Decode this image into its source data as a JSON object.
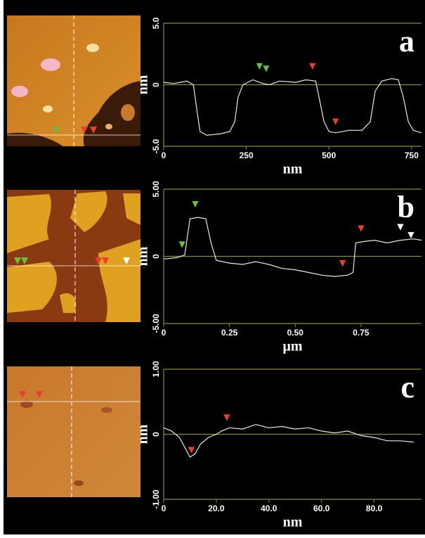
{
  "chart_data": [
    {
      "type": "line",
      "panel_label": "a",
      "x_label": "nm",
      "y_label": "nm",
      "x": [
        0,
        30,
        70,
        90,
        100,
        110,
        130,
        170,
        200,
        215,
        225,
        240,
        270,
        300,
        320,
        350,
        400,
        430,
        460,
        470,
        485,
        500,
        520,
        560,
        600,
        625,
        640,
        660,
        690,
        710,
        725,
        740,
        755,
        780
      ],
      "values": [
        0.2,
        0.1,
        0.3,
        0,
        -2,
        -3.8,
        -4.1,
        -4.0,
        -3.8,
        -3,
        -1,
        0,
        0.4,
        0.1,
        0,
        0.3,
        0.2,
        0.4,
        0.3,
        -1,
        -3,
        -3.8,
        -3.9,
        -3.7,
        -3.7,
        -3,
        -0.5,
        0.3,
        0.5,
        0.4,
        -1,
        -3,
        -3.7,
        -3.9
      ],
      "color": "#e8e8e8",
      "cursors": [
        {
          "x": 290,
          "y": 1.2,
          "color": "#6cbf3a"
        },
        {
          "x": 310,
          "y": 1.0,
          "color": "#6cbf3a"
        },
        {
          "x": 450,
          "y": 1.2,
          "color": "#e8402a"
        },
        {
          "x": 520,
          "y": -3.3,
          "color": "#e8402a"
        }
      ],
      "xlim": [
        0,
        780
      ],
      "ylim": [
        -5,
        5
      ],
      "xticks": [
        0,
        250,
        500,
        750
      ],
      "yticks": [
        {
          "value": -5,
          "label": "-5.0"
        },
        0,
        {
          "value": 5,
          "label": "5.0"
        }
      ]
    },
    {
      "type": "line",
      "panel_label": "b",
      "x_label": "μm",
      "y_label": "nm",
      "x": [
        0,
        0.05,
        0.08,
        0.1,
        0.13,
        0.16,
        0.18,
        0.2,
        0.25,
        0.3,
        0.35,
        0.4,
        0.45,
        0.5,
        0.55,
        0.6,
        0.65,
        0.7,
        0.72,
        0.73,
        0.76,
        0.8,
        0.85,
        0.9,
        0.95,
        0.98
      ],
      "values": [
        -0.2,
        -0.1,
        0.1,
        2.8,
        2.9,
        2.8,
        1.0,
        -0.3,
        -0.5,
        -0.6,
        -0.4,
        -0.6,
        -0.9,
        -1.0,
        -1.2,
        -1.4,
        -1.5,
        -1.4,
        -1.2,
        1.0,
        1.1,
        1.2,
        1.0,
        1.2,
        1.3,
        1.2
      ],
      "color": "#e8e8e8",
      "cursors": [
        {
          "x": 0.07,
          "y": 0.6,
          "color": "#6cbf3a"
        },
        {
          "x": 0.12,
          "y": 3.6,
          "color": "#6cbf3a"
        },
        {
          "x": 0.68,
          "y": -0.8,
          "color": "#e8402a"
        },
        {
          "x": 0.75,
          "y": 1.8,
          "color": "#e8402a"
        },
        {
          "x": 0.9,
          "y": 1.9,
          "color": "#ffffff"
        },
        {
          "x": 0.94,
          "y": 1.3,
          "color": "#ffffff"
        }
      ],
      "xlim": [
        0,
        0.98
      ],
      "ylim": [
        -5,
        5
      ],
      "xticks": [
        0,
        0.25,
        {
          "value": 0.5,
          "label": "0.50"
        },
        0.75
      ],
      "yticks": [
        {
          "value": -5,
          "label": "-5.00"
        },
        0,
        {
          "value": 5,
          "label": "5.00"
        }
      ]
    },
    {
      "type": "line",
      "panel_label": "c",
      "x_label": "nm",
      "y_label": "nm",
      "x": [
        0,
        3,
        6,
        8,
        10,
        12,
        14,
        17,
        20,
        22,
        25,
        30,
        35,
        40,
        45,
        50,
        55,
        60,
        65,
        70,
        75,
        80,
        85,
        90,
        95
      ],
      "values": [
        0.1,
        0.05,
        -0.05,
        -0.2,
        -0.35,
        -0.3,
        -0.15,
        -0.05,
        0,
        0.05,
        0.1,
        0.08,
        0.15,
        0.1,
        0.12,
        0.08,
        0.1,
        0.05,
        0.02,
        0.05,
        -0.02,
        -0.05,
        -0.1,
        -0.1,
        -0.12
      ],
      "color": "#e8e8e8",
      "cursors": [
        {
          "x": 10.5,
          "y": -0.3,
          "color": "#e8402a"
        },
        {
          "x": 24,
          "y": 0.2,
          "color": "#e8402a"
        }
      ],
      "xlim": [
        0,
        98
      ],
      "ylim": [
        -1,
        1
      ],
      "xticks": [
        0,
        {
          "value": 20,
          "label": "20.0"
        },
        {
          "value": 40,
          "label": "40.0"
        },
        {
          "value": 60,
          "label": "60.0"
        },
        {
          "value": 80,
          "label": "80.0"
        }
      ],
      "yticks": [
        {
          "value": -1,
          "label": "-1.00"
        },
        0,
        {
          "value": 1,
          "label": "1.00"
        }
      ]
    }
  ]
}
